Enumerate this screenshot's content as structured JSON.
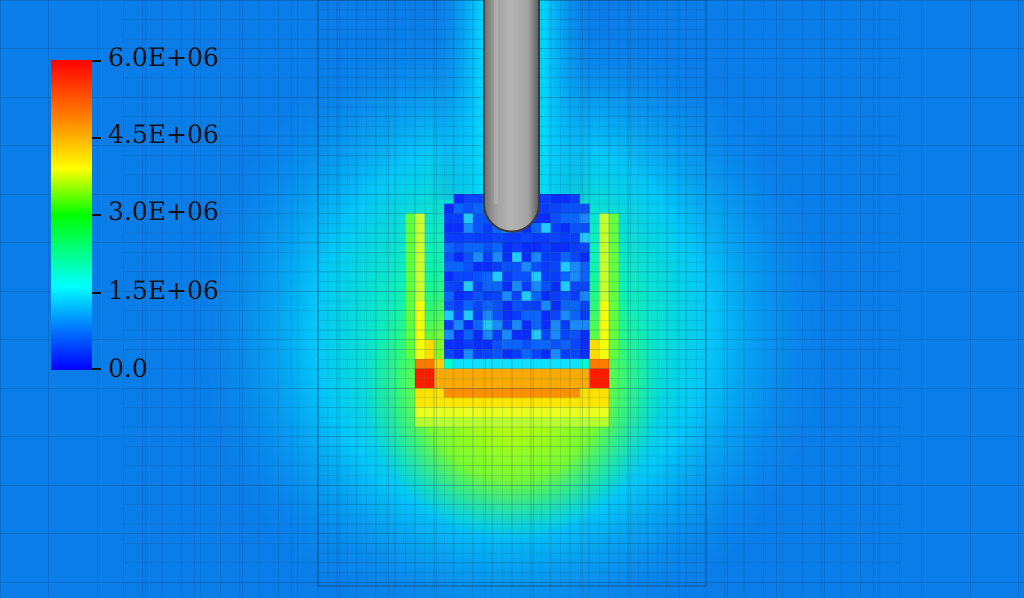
{
  "colorbar": {
    "ticks": [
      "6.0E+06",
      "4.5E+06",
      "3.0E+06",
      "1.5E+06",
      "0.0"
    ],
    "colors": [
      "#ff0000",
      "#ff8800",
      "#ffff00",
      "#00ff00",
      "#00ffff",
      "#0000ff"
    ]
  },
  "scene": {
    "background_color": "#0a7de8",
    "mesh_line_color": "#0b3a66",
    "probe_color": "#a6a6a6",
    "probe_edge_color": "#3a3a3a",
    "probe_icon": "cylindrical-probe"
  }
}
